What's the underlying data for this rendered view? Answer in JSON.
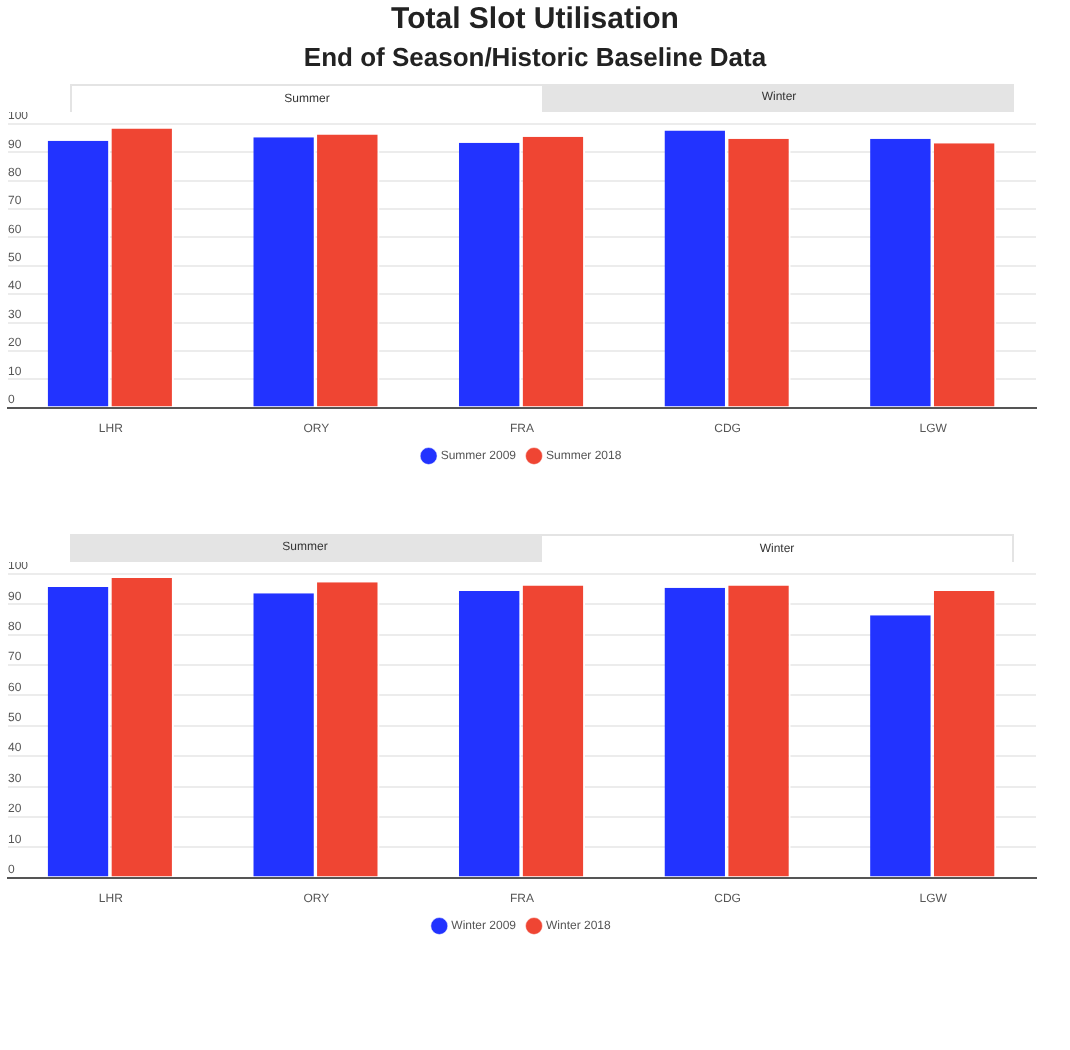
{
  "chart_data": [
    {
      "type": "bar",
      "title": "Total Slot Utilisation",
      "subtitle": "End of Season/Historic Baseline Data",
      "annotations": [
        "Summer",
        "Winter"
      ],
      "categories": [
        "LHR",
        "ORY",
        "FRA",
        "CDG",
        "LGW"
      ],
      "series": [
        {
          "name": "Summer 2009",
          "color": "#2233ff",
          "values": [
            94.1,
            95.3,
            93.4,
            97.7,
            94.8
          ]
        },
        {
          "name": "Summer 2018",
          "color": "#ef4533",
          "values": [
            98.4,
            96.3,
            95.5,
            94.8,
            93.2
          ]
        }
      ],
      "ylim": [
        0,
        100
      ],
      "yticks": [
        0,
        10,
        20,
        30,
        40,
        50,
        60,
        70,
        80,
        90,
        100
      ],
      "grid": "y",
      "legend": "bottom",
      "marker": "circle"
    },
    {
      "type": "bar",
      "annotations": [
        "Summer",
        "Winter"
      ],
      "categories": [
        "LHR",
        "ORY",
        "FRA",
        "CDG",
        "LGW"
      ],
      "series": [
        {
          "name": "Winter 2009",
          "color": "#2233ff",
          "values": [
            95.7,
            93.7,
            94.4,
            95.5,
            86.4
          ]
        },
        {
          "name": "Winter 2018",
          "color": "#ef4533",
          "values": [
            98.7,
            97.3,
            96.2,
            96.2,
            94.4
          ]
        }
      ],
      "ylim": [
        0,
        100
      ],
      "yticks": [
        0,
        10,
        20,
        30,
        40,
        50,
        60,
        70,
        80,
        90,
        100
      ],
      "grid": "y",
      "legend": "bottom",
      "marker": "circle"
    }
  ]
}
